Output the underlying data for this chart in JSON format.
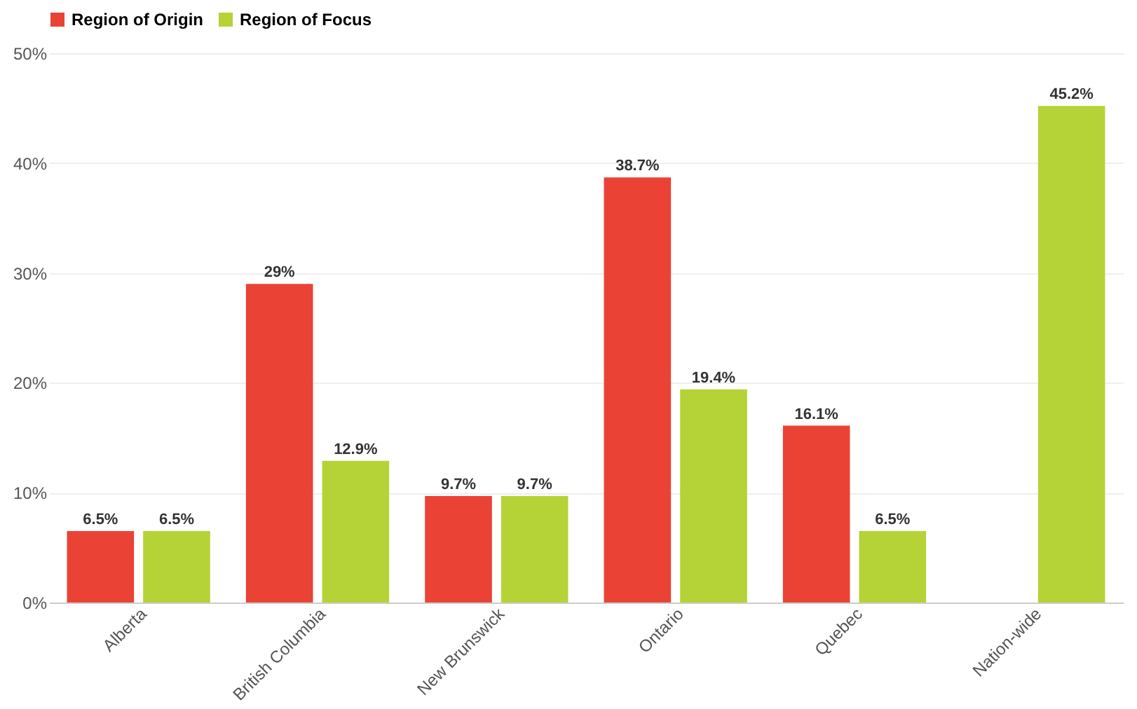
{
  "chart_data": {
    "type": "bar",
    "categories": [
      "Alberta",
      "British Columbia",
      "New Brunswick",
      "Ontario",
      "Quebec",
      "Nation-wide"
    ],
    "series": [
      {
        "name": "Region of Origin",
        "color": "#ea4335",
        "values": [
          6.5,
          29,
          9.7,
          38.7,
          16.1,
          null
        ],
        "value_labels": [
          "6.5%",
          "29%",
          "9.7%",
          "38.7%",
          "16.1%",
          null
        ]
      },
      {
        "name": "Region of Focus",
        "color": "#b5d336",
        "values": [
          6.5,
          12.9,
          9.7,
          19.4,
          6.5,
          45.2
        ],
        "value_labels": [
          "6.5%",
          "12.9%",
          "9.7%",
          "19.4%",
          "6.5%",
          "45.2%"
        ]
      }
    ],
    "ylim": [
      0,
      50
    ],
    "yticks": [
      {
        "value": 0,
        "label": "0%"
      },
      {
        "value": 10,
        "label": "10%"
      },
      {
        "value": 20,
        "label": "20%"
      },
      {
        "value": 30,
        "label": "30%"
      },
      {
        "value": 40,
        "label": "40%"
      },
      {
        "value": 50,
        "label": "50%"
      }
    ],
    "grid": "y",
    "legend": "top"
  }
}
